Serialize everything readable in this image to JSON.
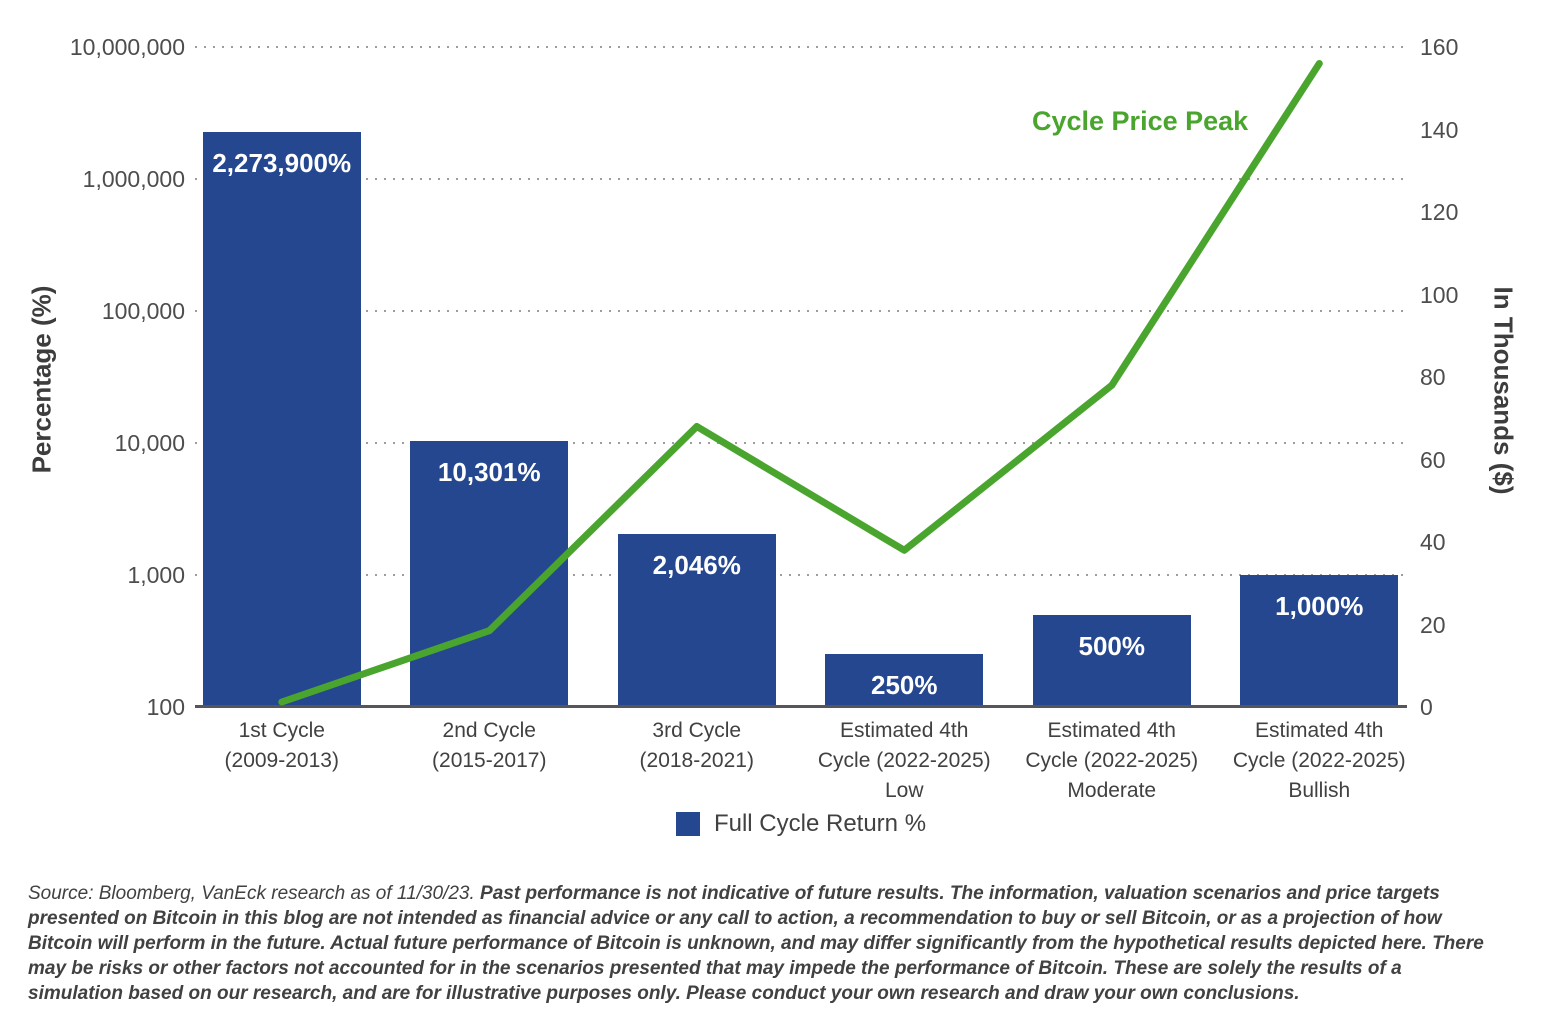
{
  "chart_data": {
    "type": "combo-bar-line",
    "categories": [
      {
        "lines": [
          "1st Cycle",
          "(2009-2013)"
        ]
      },
      {
        "lines": [
          "2nd Cycle",
          "(2015-2017)"
        ]
      },
      {
        "lines": [
          "3rd Cycle",
          "(2018-2021)"
        ]
      },
      {
        "lines": [
          "Estimated 4th",
          "Cycle (2022-2025)",
          "Low"
        ]
      },
      {
        "lines": [
          "Estimated 4th",
          "Cycle (2022-2025)",
          "Moderate"
        ]
      },
      {
        "lines": [
          "Estimated 4th",
          "Cycle (2022-2025)",
          "Bullish"
        ]
      }
    ],
    "bar_series": {
      "name": "Full Cycle Return %",
      "axis": "left",
      "color": "#25478F",
      "values": [
        2273900,
        10301,
        2046,
        250,
        500,
        1000
      ],
      "value_labels": [
        "2,273,900%",
        "10,301%",
        "2,046%",
        "250%",
        "500%",
        "1,000%"
      ]
    },
    "line_series": {
      "name": "Cycle Price Peak",
      "axis": "right",
      "color": "#4AA52E",
      "stroke_width": 7,
      "values_thousands": [
        1.2,
        18.5,
        68,
        38,
        78,
        156
      ]
    },
    "left_axis": {
      "title": "Percentage (%)",
      "scale": "log",
      "range": [
        100,
        10000000
      ],
      "ticks": [
        10000000,
        1000000,
        100000,
        10000,
        1000,
        100
      ],
      "tick_labels": [
        "10,000,000",
        "1,000,000",
        "100,000",
        "10,000",
        "1,000",
        "100"
      ]
    },
    "right_axis": {
      "title": "In Thousands ($)",
      "scale": "linear",
      "range": [
        0,
        160
      ],
      "ticks": [
        160,
        140,
        120,
        100,
        80,
        60,
        40,
        20,
        0
      ],
      "tick_labels": [
        "160",
        "140",
        "120",
        "100",
        "80",
        "60",
        "40",
        "20",
        "0"
      ]
    },
    "grid": {
      "horizontal": "dotted",
      "vertical": "none"
    },
    "legend": {
      "position": "bottom-center",
      "items": [
        {
          "label": "Full Cycle Return %",
          "swatch_color": "#25478F"
        }
      ]
    },
    "annotation": {
      "text": "Cycle Price Peak",
      "color": "#4AA52E"
    }
  },
  "footer": {
    "source": "Source: Bloomberg, VanEck research as of 11/30/23.",
    "disclaimer": "Past performance is not indicative of future results. The information, valuation scenarios and price targets presented on Bitcoin in this blog are not intended as financial advice or any call to action, a recommendation to buy or sell Bitcoin, or as a projection of how Bitcoin will perform in the future. Actual future performance of Bitcoin is unknown, and may differ significantly from the hypothetical results depicted here. There may be risks or other factors not accounted for in the scenarios presented that may impede the performance of Bitcoin. These are solely the results of a simulation based on our research, and are for illustrative purposes only. Please conduct your own research and draw your own conclusions."
  }
}
